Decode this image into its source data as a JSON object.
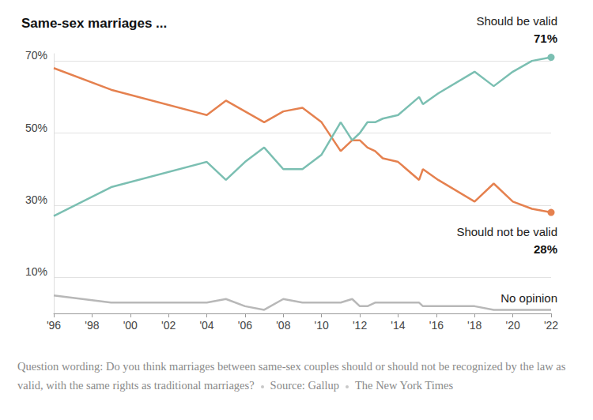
{
  "chart_data": {
    "type": "line",
    "title": "Same-sex marriages ...",
    "x": [
      1996,
      1999,
      2004,
      2005,
      2006,
      2007,
      2008,
      2009,
      2010,
      2011,
      2011.6,
      2012,
      2012.4,
      2012.8,
      2013.2,
      2014,
      2015.1,
      2015.3,
      2016.1,
      2018,
      2019,
      2020,
      2021,
      2022
    ],
    "series": [
      {
        "name": "Should be valid",
        "color": "#7bbfb2",
        "values": [
          27,
          35,
          42,
          37,
          42,
          46,
          40,
          40,
          44,
          53,
          48,
          50,
          53,
          53,
          54,
          55,
          60,
          58,
          61,
          67,
          63,
          67,
          70,
          71
        ],
        "value_labels": [
          null,
          null,
          null,
          null,
          null,
          null,
          null,
          null,
          null,
          null,
          null,
          null,
          null,
          null,
          null,
          null,
          null,
          null,
          null,
          null,
          null,
          null,
          null,
          "71%"
        ]
      },
      {
        "name": "Should not be valid",
        "color": "#e5814f",
        "values": [
          68,
          62,
          55,
          59,
          56,
          53,
          56,
          57,
          53,
          45,
          48,
          48,
          46,
          45,
          43,
          42,
          37,
          40,
          37,
          31,
          36,
          31,
          29,
          28
        ],
        "value_labels": [
          null,
          null,
          null,
          null,
          null,
          null,
          null,
          null,
          null,
          null,
          null,
          null,
          null,
          null,
          null,
          null,
          null,
          null,
          null,
          null,
          null,
          null,
          null,
          "28%"
        ]
      },
      {
        "name": "No opinion",
        "color": "#b8b8b8",
        "values": [
          5,
          3,
          3,
          4,
          2,
          1,
          4,
          3,
          3,
          3,
          4,
          2,
          2,
          3,
          3,
          3,
          3,
          2,
          2,
          2,
          1,
          1,
          1,
          1
        ]
      }
    ],
    "xlim": [
      1996,
      2022
    ],
    "xticks": [
      {
        "value": 1996,
        "label": "'96"
      },
      {
        "value": 1998,
        "label": "'98"
      },
      {
        "value": 2000,
        "label": "'00"
      },
      {
        "value": 2002,
        "label": "'02"
      },
      {
        "value": 2004,
        "label": "'04"
      },
      {
        "value": 2006,
        "label": "'06"
      },
      {
        "value": 2008,
        "label": "'08"
      },
      {
        "value": 2010,
        "label": "'10"
      },
      {
        "value": 2012,
        "label": "'12"
      },
      {
        "value": 2014,
        "label": "'14"
      },
      {
        "value": 2016,
        "label": "'16"
      },
      {
        "value": 2018,
        "label": "'18"
      },
      {
        "value": 2020,
        "label": "'20"
      },
      {
        "value": 2022,
        "label": "'22"
      }
    ],
    "ylim": [
      0,
      72
    ],
    "yticks": [
      {
        "value": 10,
        "label": "10%"
      },
      {
        "value": 30,
        "label": "30%"
      },
      {
        "value": 50,
        "label": "50%"
      },
      {
        "value": 70,
        "label": "70%"
      }
    ],
    "grid": true,
    "note": "Question wording: Do you think marriages between same-sex couples should or should not be recognized by the law as valid, with the same rights as traditional marriages?",
    "source": "Source: Gallup",
    "credit": "The New York Times"
  }
}
